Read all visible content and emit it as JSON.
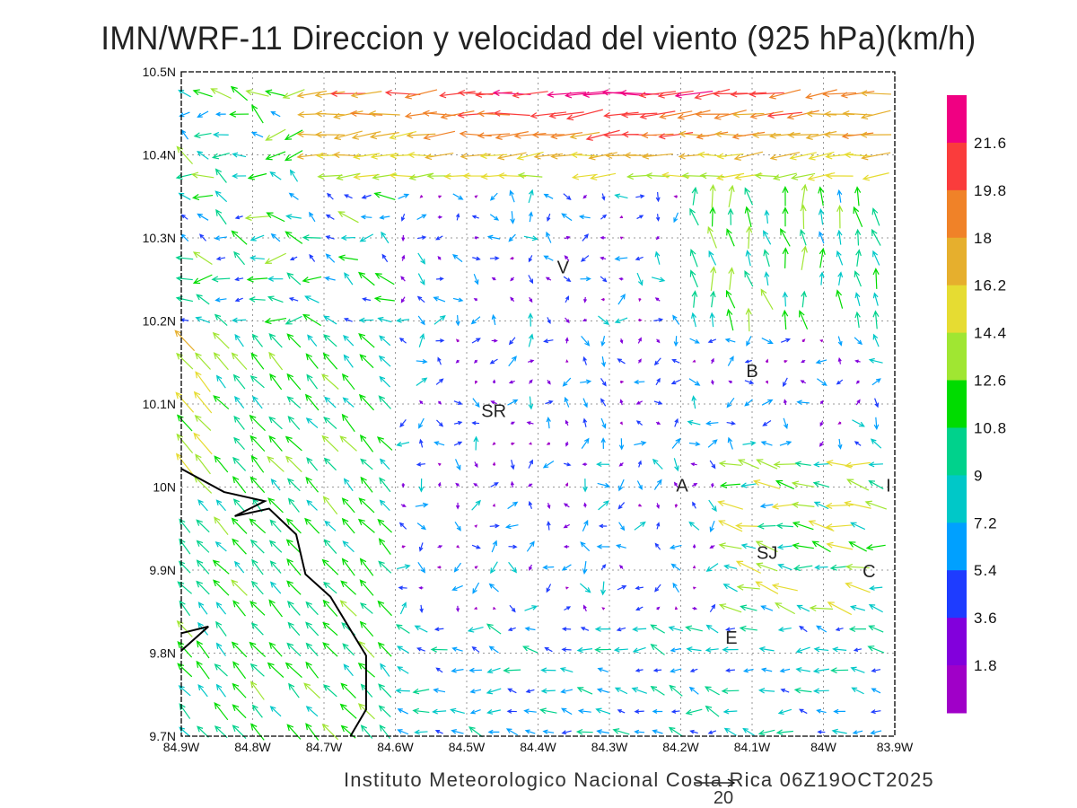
{
  "title": "IMN/WRF-11 Direccion y velocidad del viento (925 hPa)(km/h)",
  "footer": "Instituto Meteorologico Nacional Costa Rica  06Z19OCT2025",
  "chart_data": {
    "type": "vector-field",
    "title": "IMN/WRF-11 Direccion y velocidad del viento (925 hPa)(km/h)",
    "units": "km/h",
    "lon_range": [
      -84.9,
      -83.9
    ],
    "lat_range": [
      9.7,
      10.5
    ],
    "x_ticks": [
      "84.9W",
      "84.8W",
      "84.7W",
      "84.6W",
      "84.5W",
      "84.4W",
      "84.3W",
      "84.2W",
      "84.1W",
      "84W",
      "83.9W"
    ],
    "y_ticks": [
      "9.7N",
      "9.8N",
      "9.9N",
      "10N",
      "10.1N",
      "10.2N",
      "10.3N",
      "10.4N",
      "10.5N"
    ],
    "grid": true,
    "reference_vector": {
      "value": 20,
      "label": "20"
    },
    "colorbar": {
      "labels": [
        "1.8",
        "3.6",
        "5.4",
        "7.2",
        "9",
        "10.8",
        "12.6",
        "14.4",
        "16.2",
        "18",
        "19.8",
        "21.6"
      ],
      "colors": [
        "#a000c8",
        "#8200dc",
        "#1e3cff",
        "#00a0ff",
        "#00c8c8",
        "#00d28c",
        "#00dc00",
        "#a0e632",
        "#e6dc32",
        "#e6af2d",
        "#f08228",
        "#fa3c3c",
        "#f00082"
      ]
    },
    "cities": [
      {
        "label": "V",
        "lon": -84.365,
        "lat": 10.265
      },
      {
        "label": "SR",
        "lon": -84.462,
        "lat": 10.092
      },
      {
        "label": "B",
        "lon": -84.1,
        "lat": 10.14
      },
      {
        "label": "A",
        "lon": -84.198,
        "lat": 10.002
      },
      {
        "label": "I",
        "lon": -83.909,
        "lat": 10.002
      },
      {
        "label": "SJ",
        "lon": -84.079,
        "lat": 9.921
      },
      {
        "label": "C",
        "lon": -83.936,
        "lat": 9.899
      },
      {
        "label": "E",
        "lon": -84.129,
        "lat": 9.819
      }
    ],
    "coastline": [
      [
        [
          -84.9,
          10.022
        ],
        [
          -84.84,
          9.994
        ],
        [
          -84.783,
          9.983
        ],
        [
          -84.825,
          9.965
        ],
        [
          -84.777,
          9.974
        ],
        [
          -84.739,
          9.943
        ],
        [
          -84.726,
          9.895
        ],
        [
          -84.691,
          9.868
        ],
        [
          -84.641,
          9.797
        ],
        [
          -84.641,
          9.732
        ],
        [
          -84.663,
          9.7
        ]
      ],
      [
        [
          -84.9,
          9.824
        ],
        [
          -84.862,
          9.832
        ],
        [
          -84.9,
          9.803
        ]
      ]
    ]
  }
}
